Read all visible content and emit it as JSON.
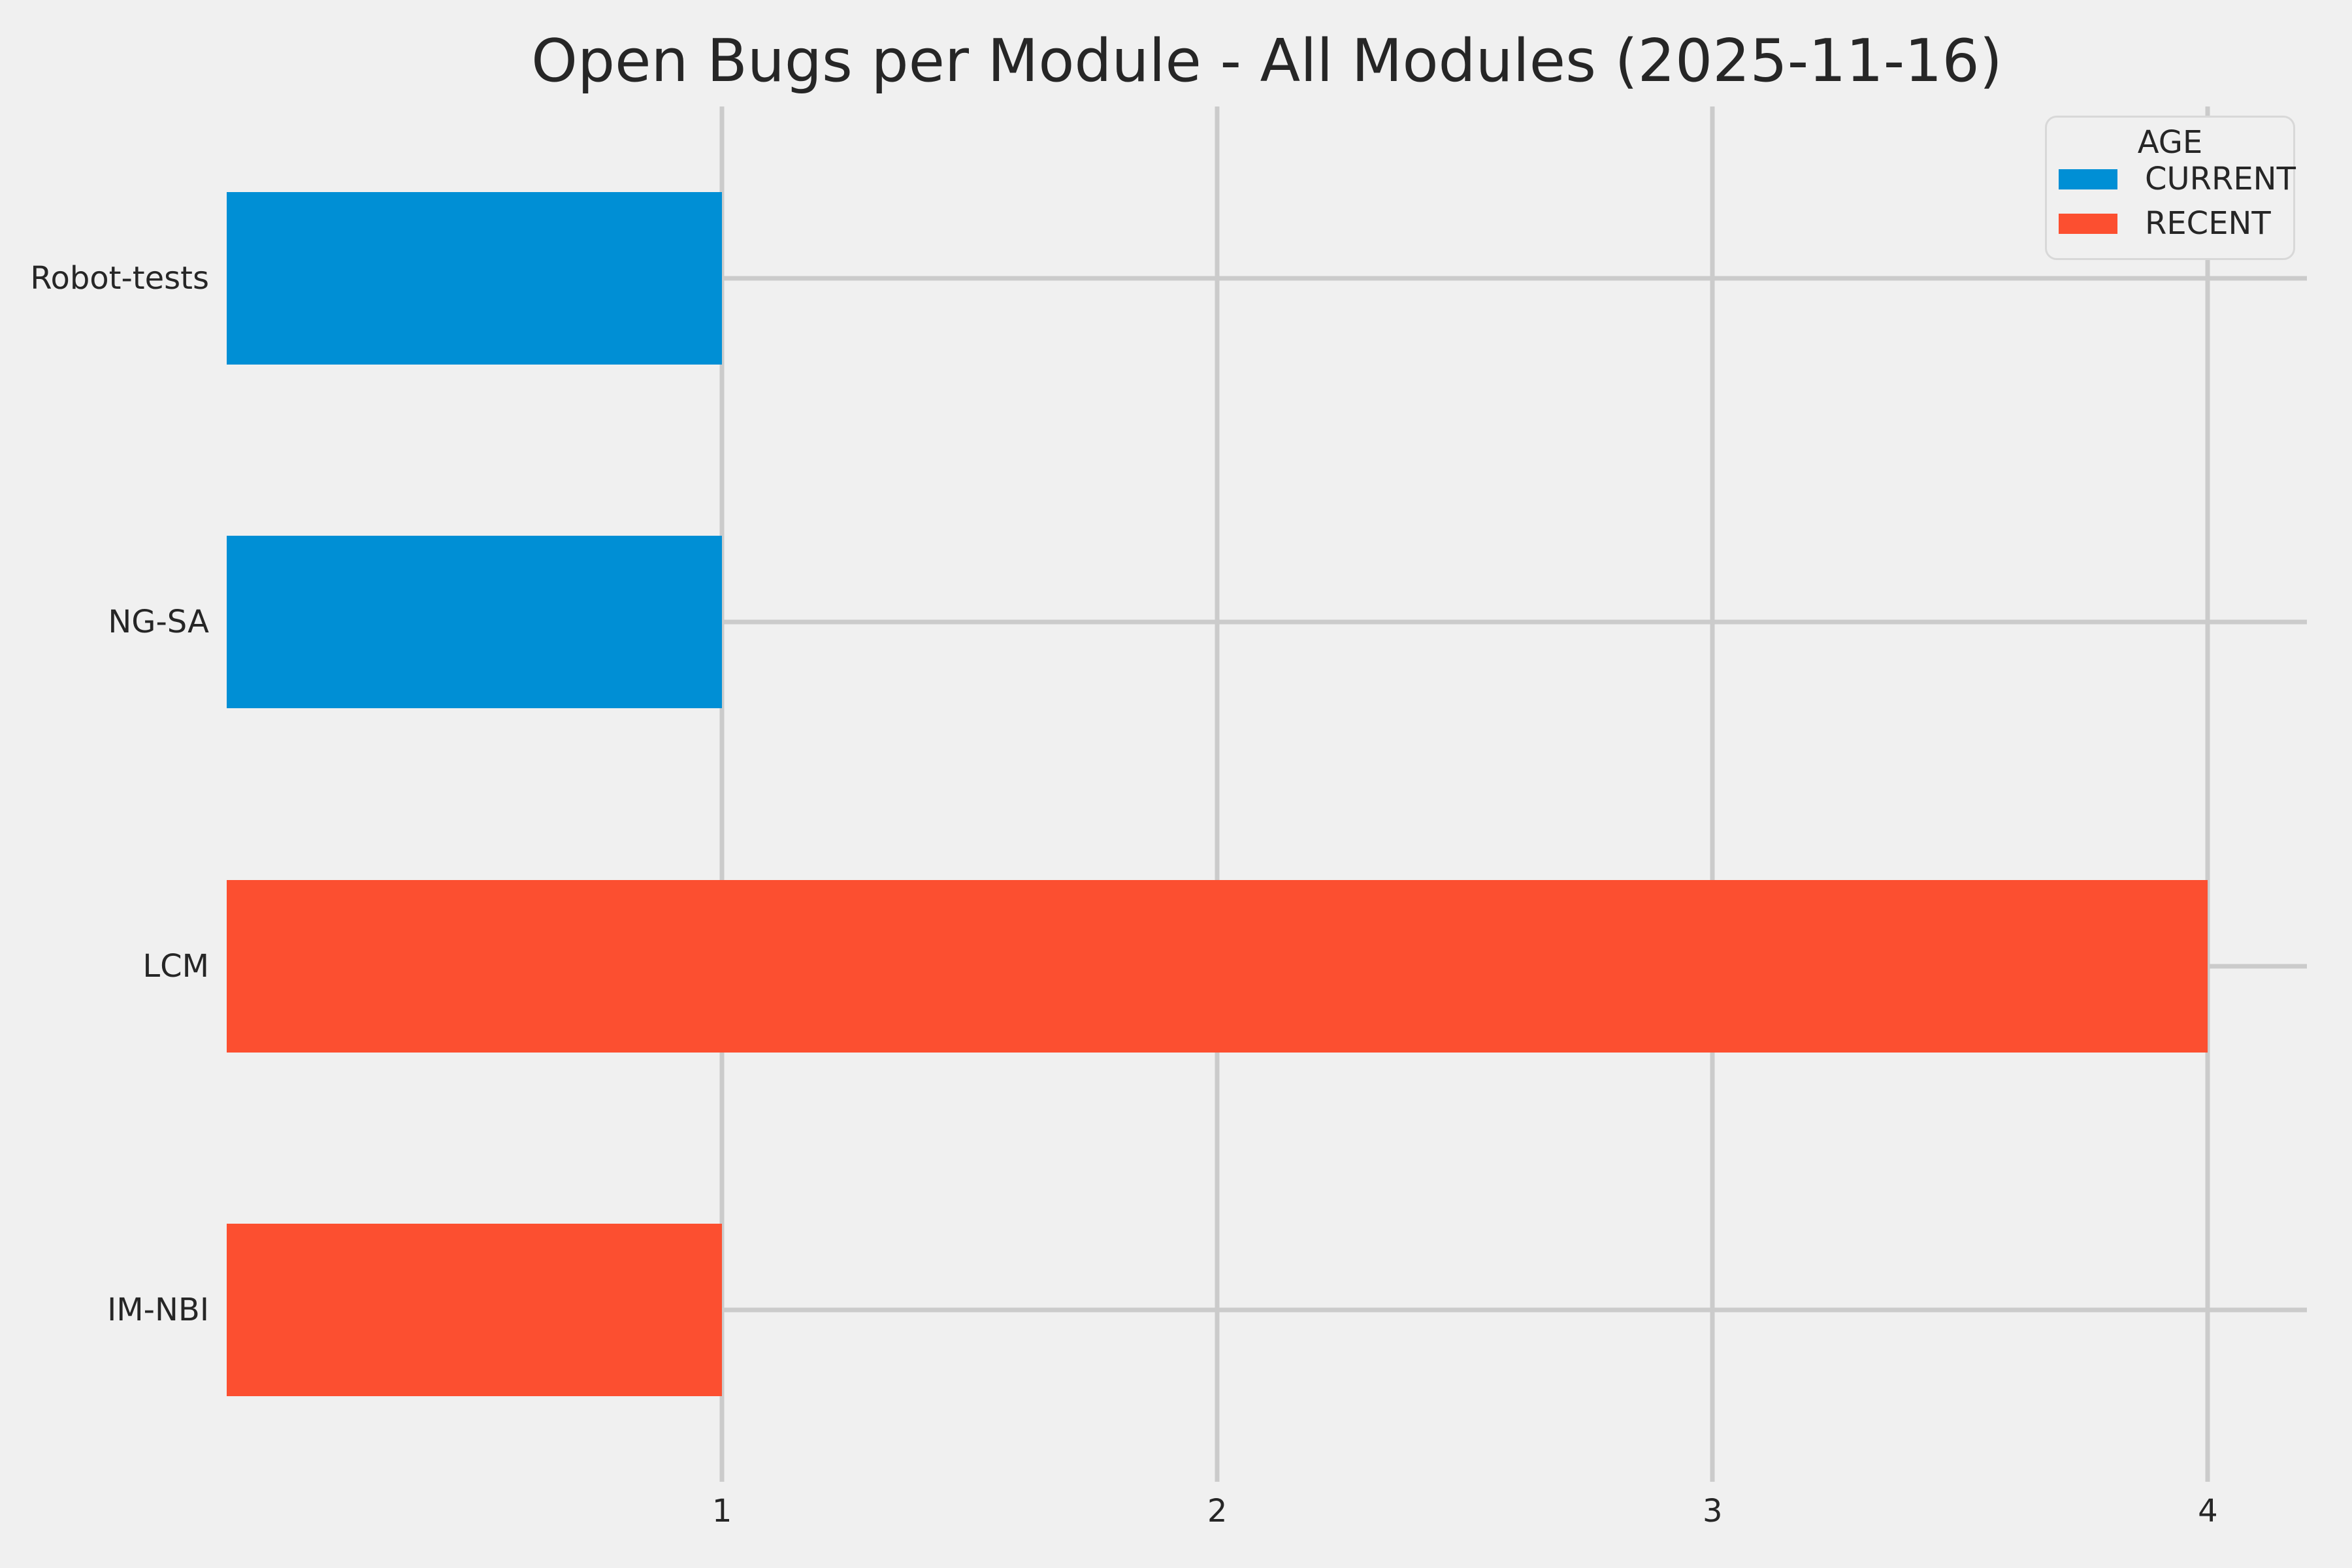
{
  "title": "Open Bugs per Module - All Modules (2025-11-16)",
  "colors": {
    "background": "#f0f0f0",
    "grid": "#cbcbcb",
    "text": "#262626",
    "current_blue": "#008fd5",
    "recent_orange": "#fc4f30",
    "legend_border": "#d8d8d8"
  },
  "legend": {
    "title": "AGE",
    "entries": [
      {
        "label": "CURRENT",
        "color": "#008fd5"
      },
      {
        "label": "RECENT",
        "color": "#fc4f30"
      }
    ]
  },
  "chart_data": {
    "type": "bar",
    "orientation": "horizontal",
    "title": "Open Bugs per Module - All Modules (2025-11-16)",
    "categories": [
      "Robot-tests",
      "NG-SA",
      "LCM",
      "IM-NBI"
    ],
    "values": [
      1,
      1,
      4,
      1
    ],
    "category_series": [
      "CURRENT",
      "CURRENT",
      "RECENT",
      "RECENT"
    ],
    "series": [
      {
        "name": "CURRENT",
        "color": "#008fd5"
      },
      {
        "name": "RECENT",
        "color": "#fc4f30"
      }
    ],
    "xlabel": "",
    "ylabel": "",
    "xlim": [
      0,
      4.2
    ],
    "xticks": [
      1,
      2,
      3,
      4
    ],
    "grid": true,
    "legend_title": "AGE",
    "legend_position": "upper right"
  }
}
